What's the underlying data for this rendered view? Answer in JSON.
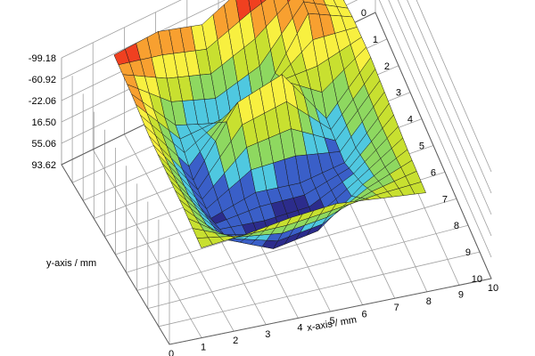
{
  "chart_data": {
    "type": "surface3d",
    "title": "",
    "xlabel": "x-axis / mm",
    "ylabel": "y-axis / mm",
    "zlabel": "",
    "x_ticks": [
      "0",
      "1",
      "2",
      "3",
      "4",
      "5",
      "6",
      "7",
      "8",
      "9",
      "10"
    ],
    "y_ticks": [
      "0",
      "1",
      "2",
      "3",
      "4",
      "5",
      "6",
      "7",
      "8",
      "9",
      "10"
    ],
    "z_ticks": [
      "93.62",
      "55.06",
      "16.50",
      "-22.06",
      "-60.92",
      "-99.18"
    ],
    "xlim": [
      0,
      10
    ],
    "ylim": [
      0,
      10
    ],
    "zlim": [
      -99.18,
      93.62
    ],
    "grid": true,
    "colormap": [
      "#2c2c8c",
      "#3a5fc8",
      "#4fc8e0",
      "#8ed860",
      "#c8e030",
      "#f8f040",
      "#f8a030",
      "#f04020"
    ],
    "grid_size": 6,
    "z_grid_approx": [
      [
        75,
        80,
        55,
        90,
        85,
        20
      ],
      [
        60,
        -30,
        -60,
        -40,
        70,
        30
      ],
      [
        40,
        -70,
        40,
        60,
        -50,
        30
      ],
      [
        30,
        -80,
        -60,
        -70,
        -60,
        20
      ],
      [
        20,
        -60,
        -99,
        -90,
        -30,
        10
      ],
      [
        5,
        10,
        20,
        25,
        15,
        5
      ]
    ]
  }
}
